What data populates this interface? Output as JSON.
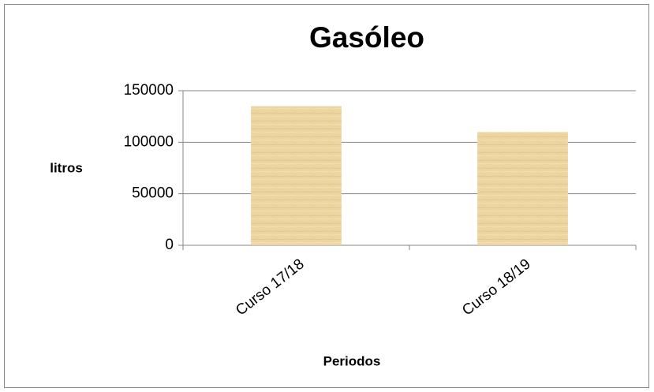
{
  "chart_data": {
    "type": "bar",
    "title": "Gasóleo",
    "y_label": "litros",
    "x_label": "Periodos",
    "categories": [
      "Curso 17/18",
      "Curso 18/19"
    ],
    "values": [
      135000,
      110000
    ],
    "color": "#ecd5a0",
    "ylim": [
      0,
      150000
    ],
    "yticks": [
      0,
      50000,
      100000,
      150000
    ],
    "grid": true
  }
}
